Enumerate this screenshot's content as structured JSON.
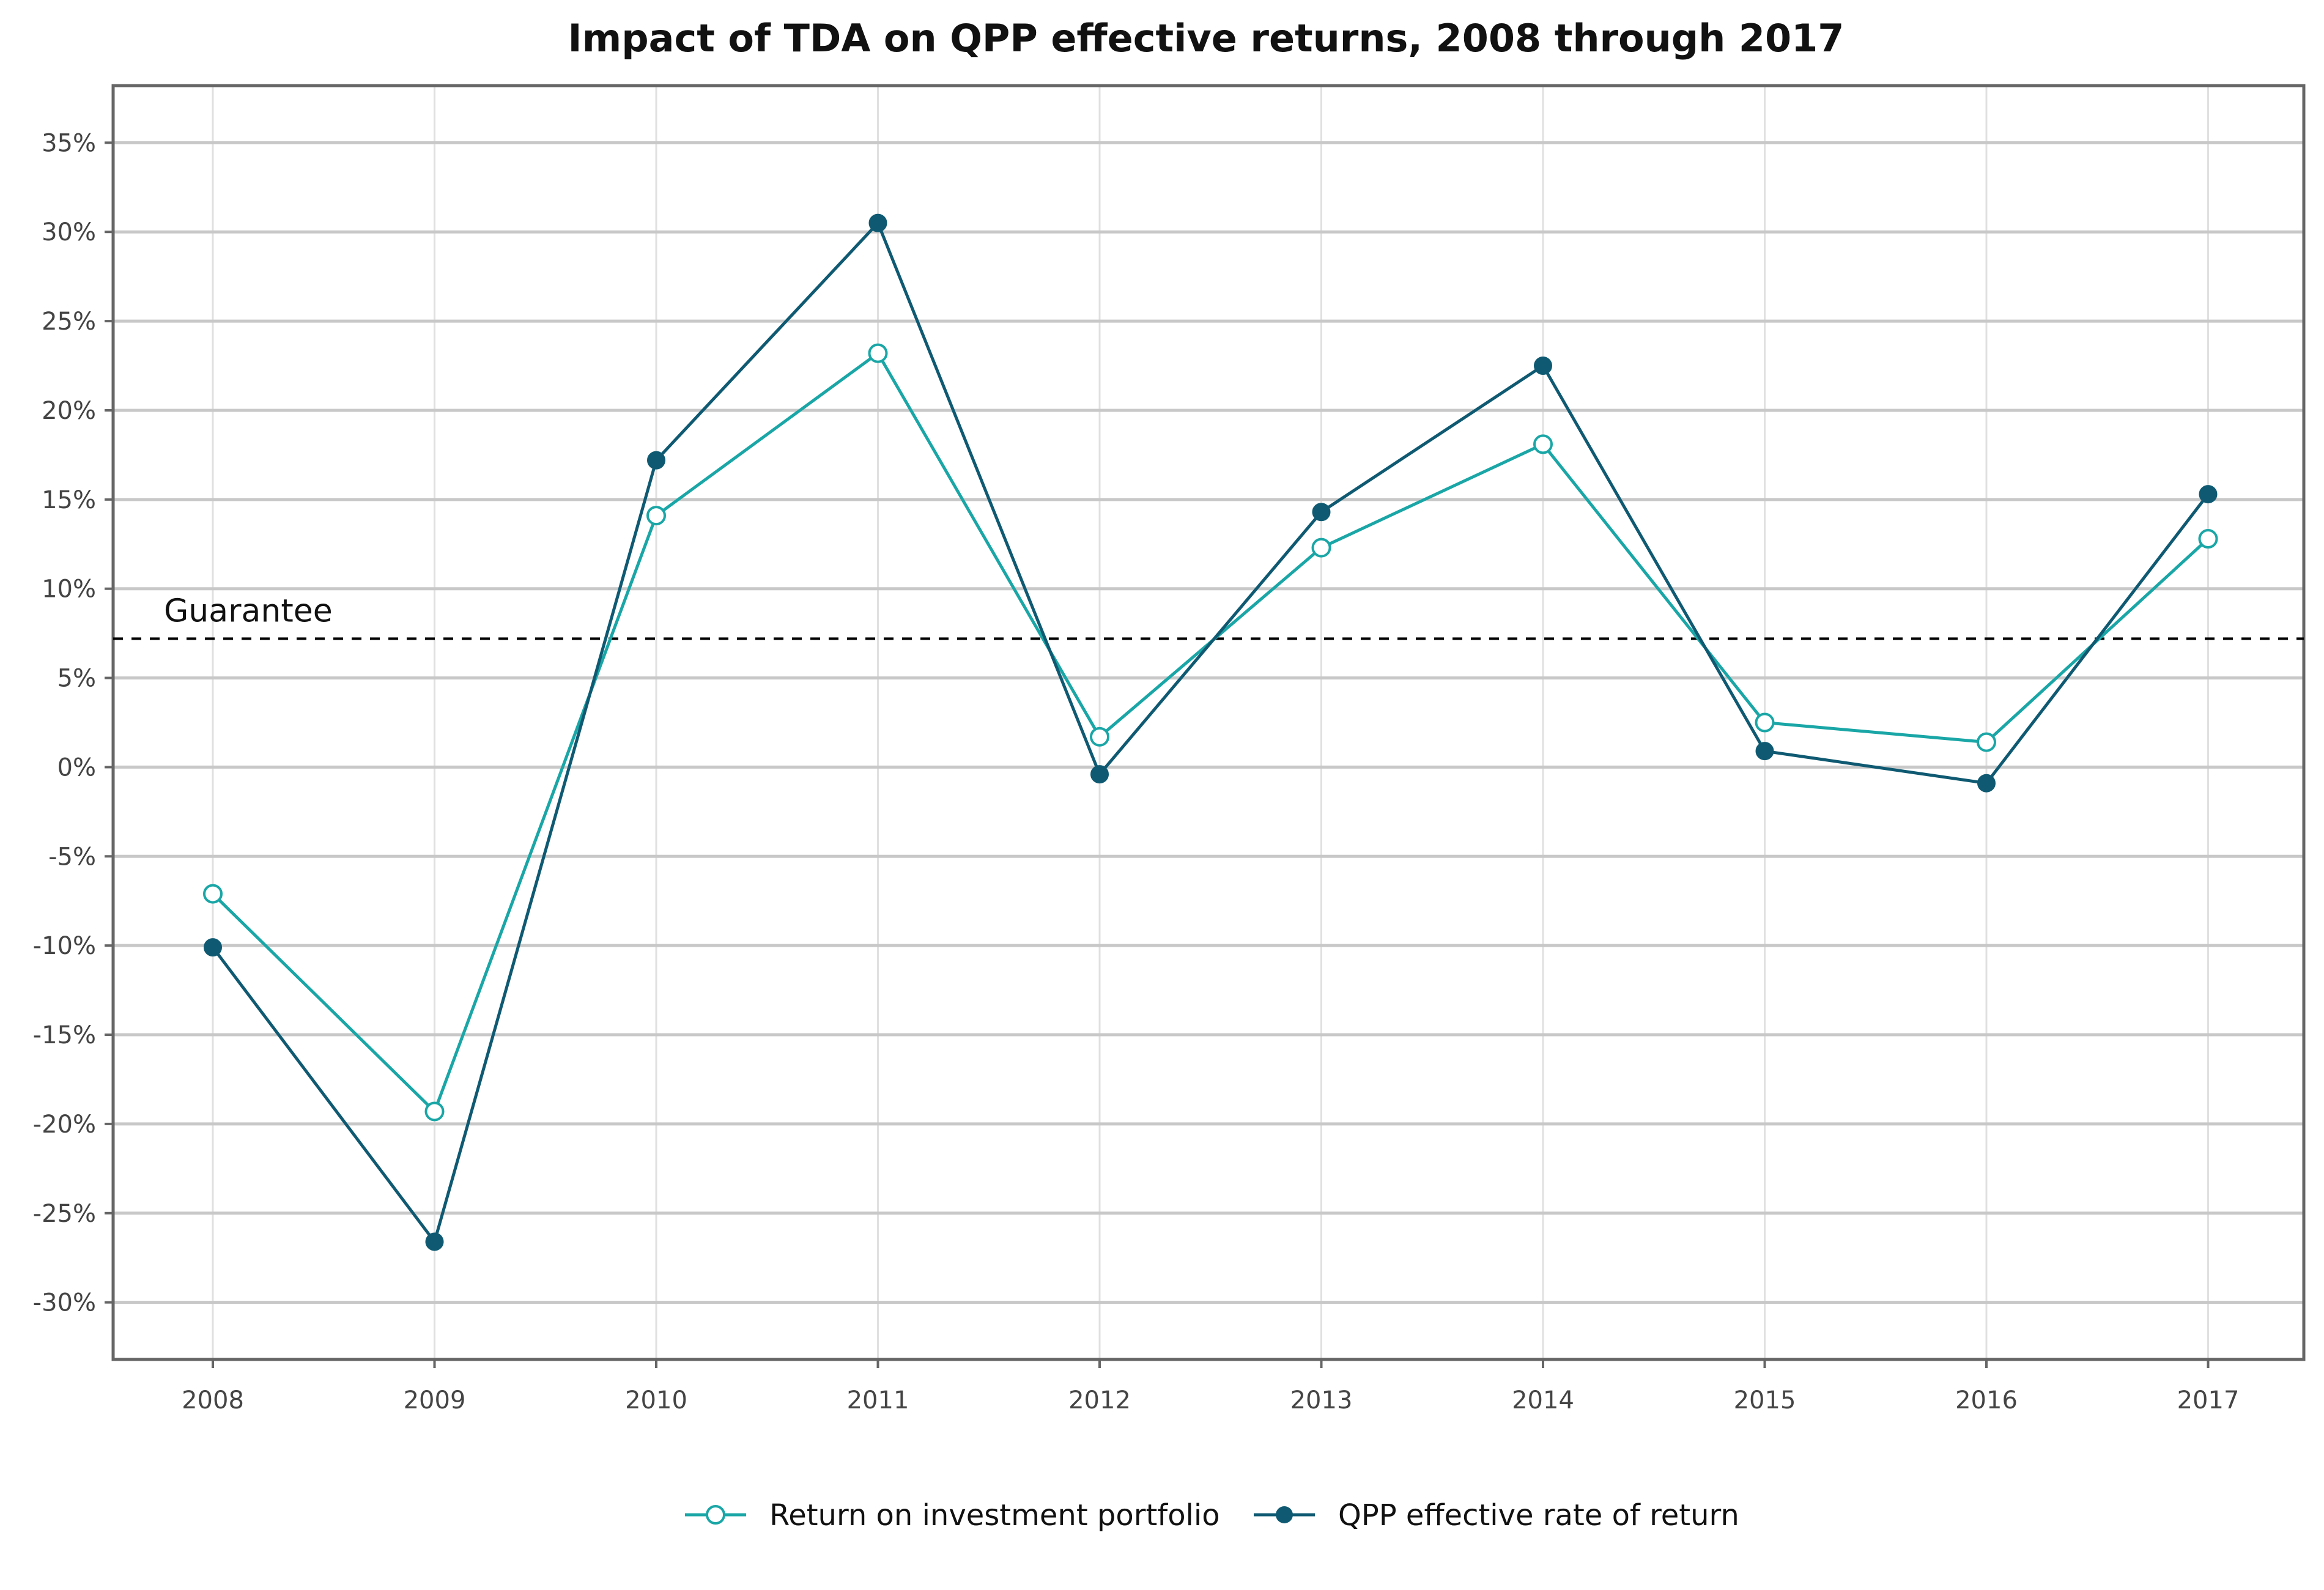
{
  "chart_data": {
    "type": "line",
    "title": "Impact of TDA on QPP effective returns, 2008 through 2017",
    "xlabel": "",
    "ylabel": "",
    "x": [
      "2008",
      "2009",
      "2010",
      "2011",
      "2012",
      "2013",
      "2014",
      "2015",
      "2016",
      "2017"
    ],
    "ylim": [
      -33.2,
      38.2
    ],
    "y_ticks": [
      35,
      30,
      25,
      20,
      15,
      10,
      5,
      0,
      -5,
      -10,
      -15,
      -20,
      -25,
      -30
    ],
    "y_tick_labels": [
      "35%",
      "30%",
      "25%",
      "20%",
      "15%",
      "10%",
      "5%",
      "0%",
      "-5%",
      "-10%",
      "-15%",
      "-20%",
      "-25%",
      "-30%"
    ],
    "grid": true,
    "legend_position": "bottom",
    "series": [
      {
        "name": "Return on investment portfolio",
        "color": "#1aa6a6",
        "marker": "open-circle",
        "values": [
          -7.1,
          -19.3,
          14.1,
          23.2,
          1.7,
          12.3,
          18.1,
          2.5,
          1.4,
          12.8
        ]
      },
      {
        "name": "QPP effective rate of return",
        "color": "#0f5a72",
        "marker": "filled-circle",
        "values": [
          -10.1,
          -26.6,
          17.2,
          30.5,
          -0.4,
          14.3,
          22.5,
          0.9,
          -0.9,
          15.3
        ]
      }
    ],
    "reference_line": {
      "label": "Guarantee",
      "value": 7.2,
      "style": "dashed",
      "color": "#000000"
    }
  }
}
